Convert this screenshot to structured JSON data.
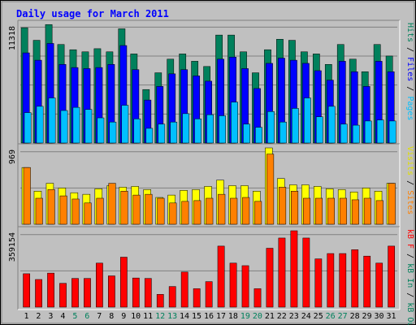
{
  "chart_data": [
    {
      "type": "bar",
      "title": "Daily usage for March 2011",
      "ylabel_parts": [
        {
          "text": "Hits",
          "color": "#00805c"
        },
        {
          "text": " / ",
          "color": "#000000"
        },
        {
          "text": "Files",
          "color": "#0000ff"
        },
        {
          "text": " / ",
          "color": "#000000"
        },
        {
          "text": "Pages",
          "color": "#00c0ff"
        }
      ],
      "ymax_label": "11318",
      "ylim": [
        0,
        11318
      ],
      "categories": [
        "1",
        "2",
        "3",
        "4",
        "5",
        "6",
        "7",
        "8",
        "9",
        "10",
        "11",
        "12",
        "13",
        "14",
        "15",
        "16",
        "17",
        "18",
        "19",
        "20",
        "21",
        "22",
        "23",
        "24",
        "25",
        "26",
        "27",
        "28",
        "29",
        "30",
        "31"
      ],
      "series": [
        {
          "name": "Hits",
          "color": "#00805c",
          "values": [
            11000,
            9800,
            11300,
            9400,
            8900,
            8700,
            9000,
            8700,
            10900,
            8500,
            5100,
            6700,
            8000,
            8500,
            7800,
            7300,
            10300,
            10300,
            8700,
            6700,
            8900,
            9900,
            9800,
            8700,
            8500,
            7500,
            9400,
            8000,
            6800,
            9400,
            8300
          ]
        },
        {
          "name": "Files",
          "color": "#0000ff",
          "values": [
            8600,
            7900,
            9500,
            7500,
            7200,
            7100,
            7200,
            7500,
            9300,
            7000,
            4100,
            5400,
            6600,
            7000,
            6400,
            5900,
            8000,
            8200,
            7100,
            5200,
            7600,
            8100,
            7900,
            7600,
            6900,
            6000,
            7800,
            6800,
            5400,
            7800,
            6800
          ]
        },
        {
          "name": "Pages",
          "color": "#00c0ff",
          "values": [
            2900,
            3500,
            4300,
            3100,
            3400,
            3200,
            2400,
            2000,
            3600,
            2300,
            1400,
            1800,
            2000,
            2800,
            2300,
            2700,
            2600,
            3900,
            1800,
            1500,
            3000,
            2000,
            3300,
            4300,
            2500,
            3500,
            1800,
            1700,
            2100,
            2200,
            2100
          ]
        }
      ]
    },
    {
      "type": "bar",
      "ylabel_parts": [
        {
          "text": "Visits",
          "color": "#e0e000"
        },
        {
          "text": " / ",
          "color": "#000000"
        },
        {
          "text": "Sites",
          "color": "#ff8000"
        }
      ],
      "ymax_label": "969",
      "ylim": [
        0,
        969
      ],
      "categories": [
        "1",
        "2",
        "3",
        "4",
        "5",
        "6",
        "7",
        "8",
        "9",
        "10",
        "11",
        "12",
        "13",
        "14",
        "15",
        "16",
        "17",
        "18",
        "19",
        "20",
        "21",
        "22",
        "23",
        "24",
        "25",
        "26",
        "27",
        "28",
        "29",
        "30",
        "31"
      ],
      "series": [
        {
          "name": "Visits",
          "color": "#ffff00",
          "values": [
            720,
            420,
            520,
            460,
            400,
            380,
            450,
            490,
            470,
            480,
            440,
            340,
            370,
            430,
            440,
            480,
            560,
            490,
            490,
            420,
            969,
            580,
            500,
            500,
            480,
            450,
            440,
            410,
            460,
            420,
            520
          ]
        },
        {
          "name": "Sites",
          "color": "#ff8000",
          "values": [
            720,
            330,
            440,
            360,
            320,
            270,
            330,
            520,
            420,
            370,
            380,
            330,
            270,
            290,
            300,
            330,
            380,
            330,
            340,
            290,
            890,
            470,
            420,
            330,
            330,
            330,
            330,
            310,
            330,
            300,
            520
          ]
        }
      ]
    },
    {
      "type": "bar",
      "ylabel_parts": [
        {
          "text": "kB F",
          "color": "#ff0000"
        },
        {
          "text": " / ",
          "color": "#000000"
        },
        {
          "text": "kB In",
          "color": "#00805c"
        },
        {
          "text": " / ",
          "color": "#000000"
        },
        {
          "text": "kB Out",
          "color": "#00805c"
        }
      ],
      "ymax_label": "359154",
      "ylim": [
        0,
        359154
      ],
      "categories": [
        "1",
        "2",
        "3",
        "4",
        "5",
        "6",
        "7",
        "8",
        "9",
        "10",
        "11",
        "12",
        "13",
        "14",
        "15",
        "16",
        "17",
        "18",
        "19",
        "20",
        "21",
        "22",
        "23",
        "24",
        "25",
        "26",
        "27",
        "28",
        "29",
        "30",
        "31"
      ],
      "series": [
        {
          "name": "kB F",
          "color": "#ff0000",
          "values": [
            157000,
            130000,
            160000,
            112000,
            135000,
            135000,
            207000,
            147000,
            235000,
            137000,
            135000,
            60000,
            97000,
            165000,
            87000,
            120000,
            287000,
            207000,
            195000,
            87000,
            277000,
            325000,
            359154,
            325000,
            227000,
            252000,
            252000,
            270000,
            240000,
            207000,
            287000
          ]
        }
      ]
    }
  ],
  "x_weekend_days": [
    "5",
    "6",
    "12",
    "13",
    "19",
    "20",
    "26",
    "27"
  ],
  "colors": {
    "border_dark": "#000000",
    "bg_outer": "#c0c0c0",
    "bg_panel": "#c0c0c0",
    "title": "#0000ff",
    "weekday_label": "#000000",
    "weekend_label": "#00805c"
  }
}
